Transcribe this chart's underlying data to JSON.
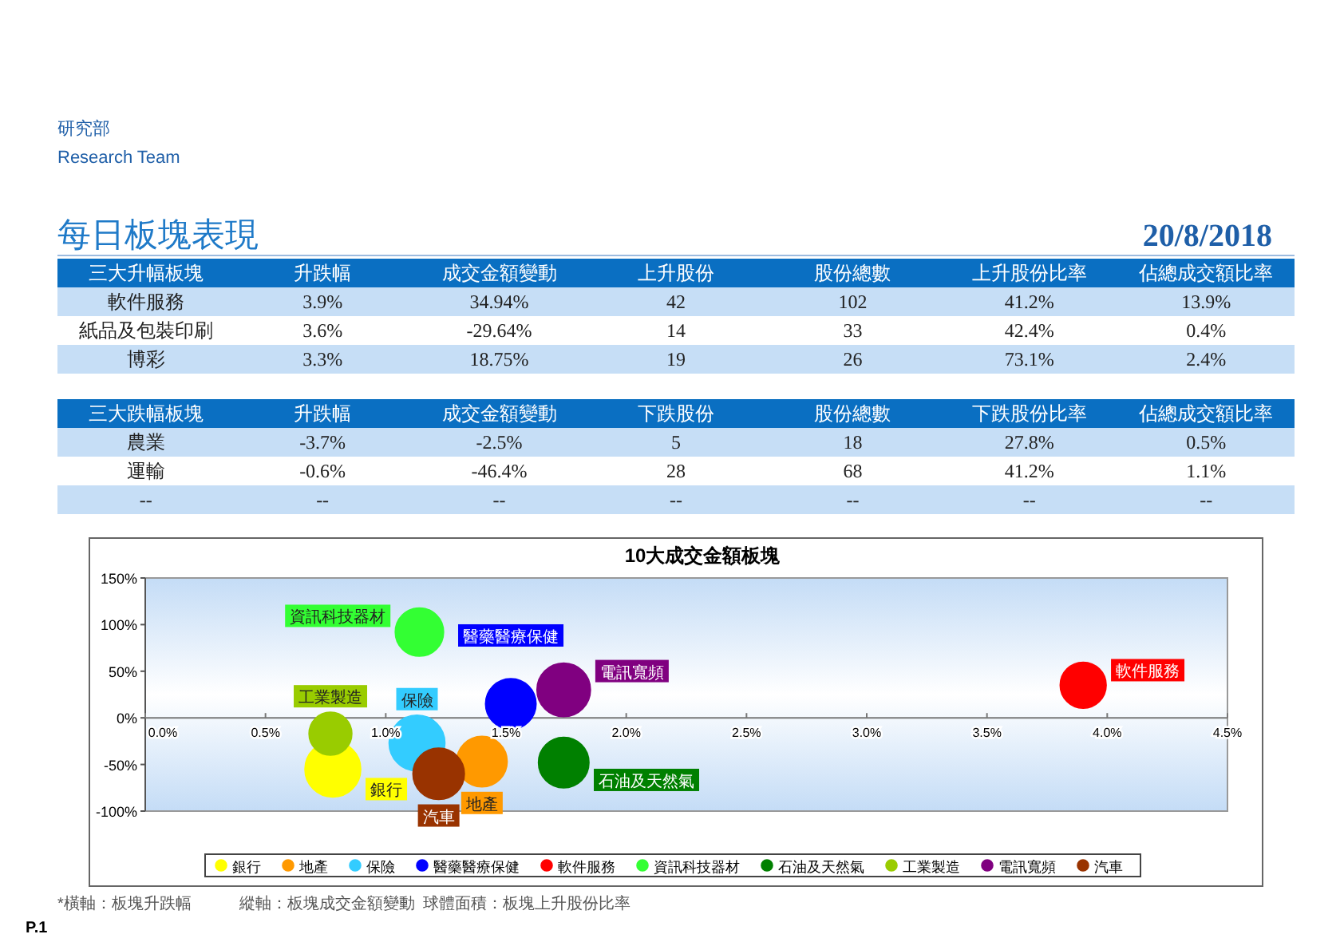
{
  "chart_data": [
    {
      "type": "other",
      "title": "每日板塊表現",
      "subtitle": "20/8/2018",
      "annotations": [
        "研究部",
        "Research Team"
      ]
    },
    {
      "type": "other",
      "annotations": [
        "三大升幅板塊",
        "升跌幅",
        "成交金額變動",
        "上升股份",
        "股份總數",
        "上升股份比率",
        "佔總成交額比率",
        "軟件服務",
        "3.9%",
        "34.94%",
        "42",
        "102",
        "41.2%",
        "13.9%",
        "紙品及包裝印刷",
        "3.6%",
        "-29.64%",
        "14",
        "33",
        "42.4%",
        "0.4%",
        "博彩",
        "3.3%",
        "18.75%",
        "19",
        "26",
        "73.1%",
        "2.4%"
      ]
    },
    {
      "type": "other",
      "annotations": [
        "三大跌幅板塊",
        "升跌幅",
        "成交金額變動",
        "下跌股份",
        "股份總數",
        "下跌股份比率",
        "佔總成交額比率",
        "農業",
        "-3.7%",
        "-2.5%",
        "5",
        "18",
        "27.8%",
        "0.5%",
        "運輸",
        "-0.6%",
        "-46.4%",
        "28",
        "68",
        "41.2%",
        "1.1%",
        "--",
        "--",
        "--",
        "--",
        "--",
        "--",
        "--"
      ]
    },
    {
      "type": "bubble",
      "title": "10大成交金額板塊",
      "xlim": [
        0,
        4.5
      ],
      "ylim": [
        -100,
        150
      ],
      "xticks": [
        {
          "value": 0,
          "label": "0.0%"
        },
        {
          "value": 0.5,
          "label": "0.5%"
        },
        {
          "value": 1,
          "label": "1.0%"
        },
        {
          "value": 1.5,
          "label": "1.5%"
        },
        {
          "value": 2,
          "label": "2.0%"
        },
        {
          "value": 2.5,
          "label": "2.5%"
        },
        {
          "value": 3,
          "label": "3.0%"
        },
        {
          "value": 3.5,
          "label": "3.5%"
        },
        {
          "value": 4,
          "label": "4.0%"
        },
        {
          "value": 4.5,
          "label": "4.5%"
        }
      ],
      "yticks": [
        {
          "value": -100,
          "label": "-100%"
        },
        {
          "value": -50,
          "label": "-50%"
        },
        {
          "value": 0,
          "label": "0%"
        },
        {
          "value": 50,
          "label": "50%"
        },
        {
          "value": 100,
          "label": "100%"
        },
        {
          "value": 150,
          "label": "150%"
        }
      ],
      "grid": false,
      "legend": "bottom",
      "series": [
        {
          "name": "銀行",
          "color": "#ffff00",
          "x": [
            0.78
          ],
          "values": [
            -55
          ],
          "sizes": [
            1
          ]
        },
        {
          "name": "地產",
          "color": "#ff9900",
          "x": [
            1.4
          ],
          "values": [
            -47
          ],
          "sizes": [
            0.82
          ]
        },
        {
          "name": "保險",
          "color": "#33ccff",
          "x": [
            1.13
          ],
          "values": [
            -27
          ],
          "sizes": [
            1
          ]
        },
        {
          "name": "醫藥醫療保健",
          "color": "#0000ff",
          "x": [
            1.52
          ],
          "values": [
            15
          ],
          "sizes": [
            0.82
          ]
        },
        {
          "name": "軟件服務",
          "color": "#ff0000",
          "x": [
            3.9
          ],
          "values": [
            35
          ],
          "sizes": [
            0.68
          ]
        },
        {
          "name": "資訊科技器材",
          "color": "#33ff33",
          "x": [
            1.14
          ],
          "values": [
            92
          ],
          "sizes": [
            0.75
          ]
        },
        {
          "name": "石油及天然氣",
          "color": "#008000",
          "x": [
            1.74
          ],
          "values": [
            -48
          ],
          "sizes": [
            0.82
          ]
        },
        {
          "name": "工業製造",
          "color": "#99cc00",
          "x": [
            0.77
          ],
          "values": [
            -17
          ],
          "sizes": [
            0.59
          ]
        },
        {
          "name": "電訊寬頻",
          "color": "#800080",
          "x": [
            1.74
          ],
          "values": [
            30
          ],
          "sizes": [
            0.92
          ]
        },
        {
          "name": "汽車",
          "color": "#993300",
          "x": [
            1.22
          ],
          "values": [
            -60
          ],
          "sizes": [
            0.85
          ]
        }
      ],
      "annotations": [
        "*橫軸：板塊升跌幅",
        "縱軸：板塊成交金額變動",
        "球體面積：板塊上升股份比率",
        "P.1"
      ]
    }
  ]
}
